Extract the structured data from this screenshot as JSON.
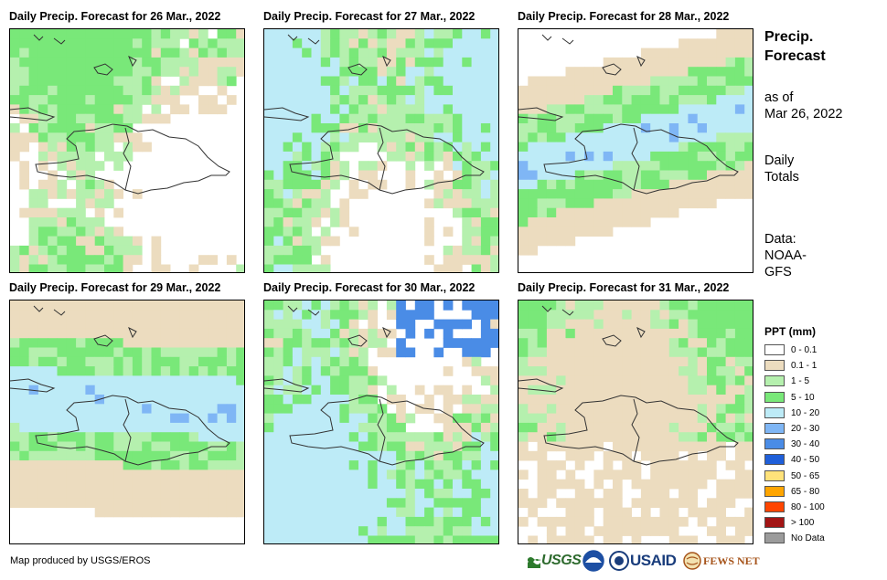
{
  "panels": [
    {
      "title": "Daily Precip. Forecast for 26 Mar., 2022"
    },
    {
      "title": "Daily Precip. Forecast for 27 Mar., 2022"
    },
    {
      "title": "Daily Precip. Forecast for 28 Mar., 2022"
    },
    {
      "title": "Daily Precip. Forecast for 29 Mar., 2022"
    },
    {
      "title": "Daily Precip. Forecast for 30 Mar., 2022"
    },
    {
      "title": "Daily Precip. Forecast for 31 Mar., 2022"
    }
  ],
  "side": {
    "title_line1": "Precip.",
    "title_line2": "Forecast",
    "asof_line1": "as of",
    "asof_line2": "Mar 26, 2022",
    "totals_line1": "Daily",
    "totals_line2": "Totals",
    "data_line1": "Data:",
    "data_line2": "NOAA-",
    "data_line3": "GFS"
  },
  "legend": {
    "title": "PPT (mm)",
    "items": [
      {
        "label": "0 - 0.1",
        "color": "#ffffff"
      },
      {
        "label": "0.1 - 1",
        "color": "#ecdcbf"
      },
      {
        "label": "1 - 5",
        "color": "#b5f0ae"
      },
      {
        "label": "5 - 10",
        "color": "#79e879"
      },
      {
        "label": "10 - 20",
        "color": "#bdebf7"
      },
      {
        "label": "20 - 30",
        "color": "#7fb6f5"
      },
      {
        "label": "30 - 40",
        "color": "#4a8ce6"
      },
      {
        "label": "40 - 50",
        "color": "#1f5fd9"
      },
      {
        "label": "50 - 65",
        "color": "#ffe27a"
      },
      {
        "label": "65 - 80",
        "color": "#ffa500"
      },
      {
        "label": "80 - 100",
        "color": "#ff4500"
      },
      {
        "label": "> 100",
        "color": "#a31515"
      },
      {
        "label": "No Data",
        "color": "#9b9b9b"
      }
    ]
  },
  "credit": "Map produced by USGS/EROS",
  "logos": {
    "usgs": "USGS",
    "usaid": "USAID",
    "fewsnet": "FEWS NET"
  }
}
